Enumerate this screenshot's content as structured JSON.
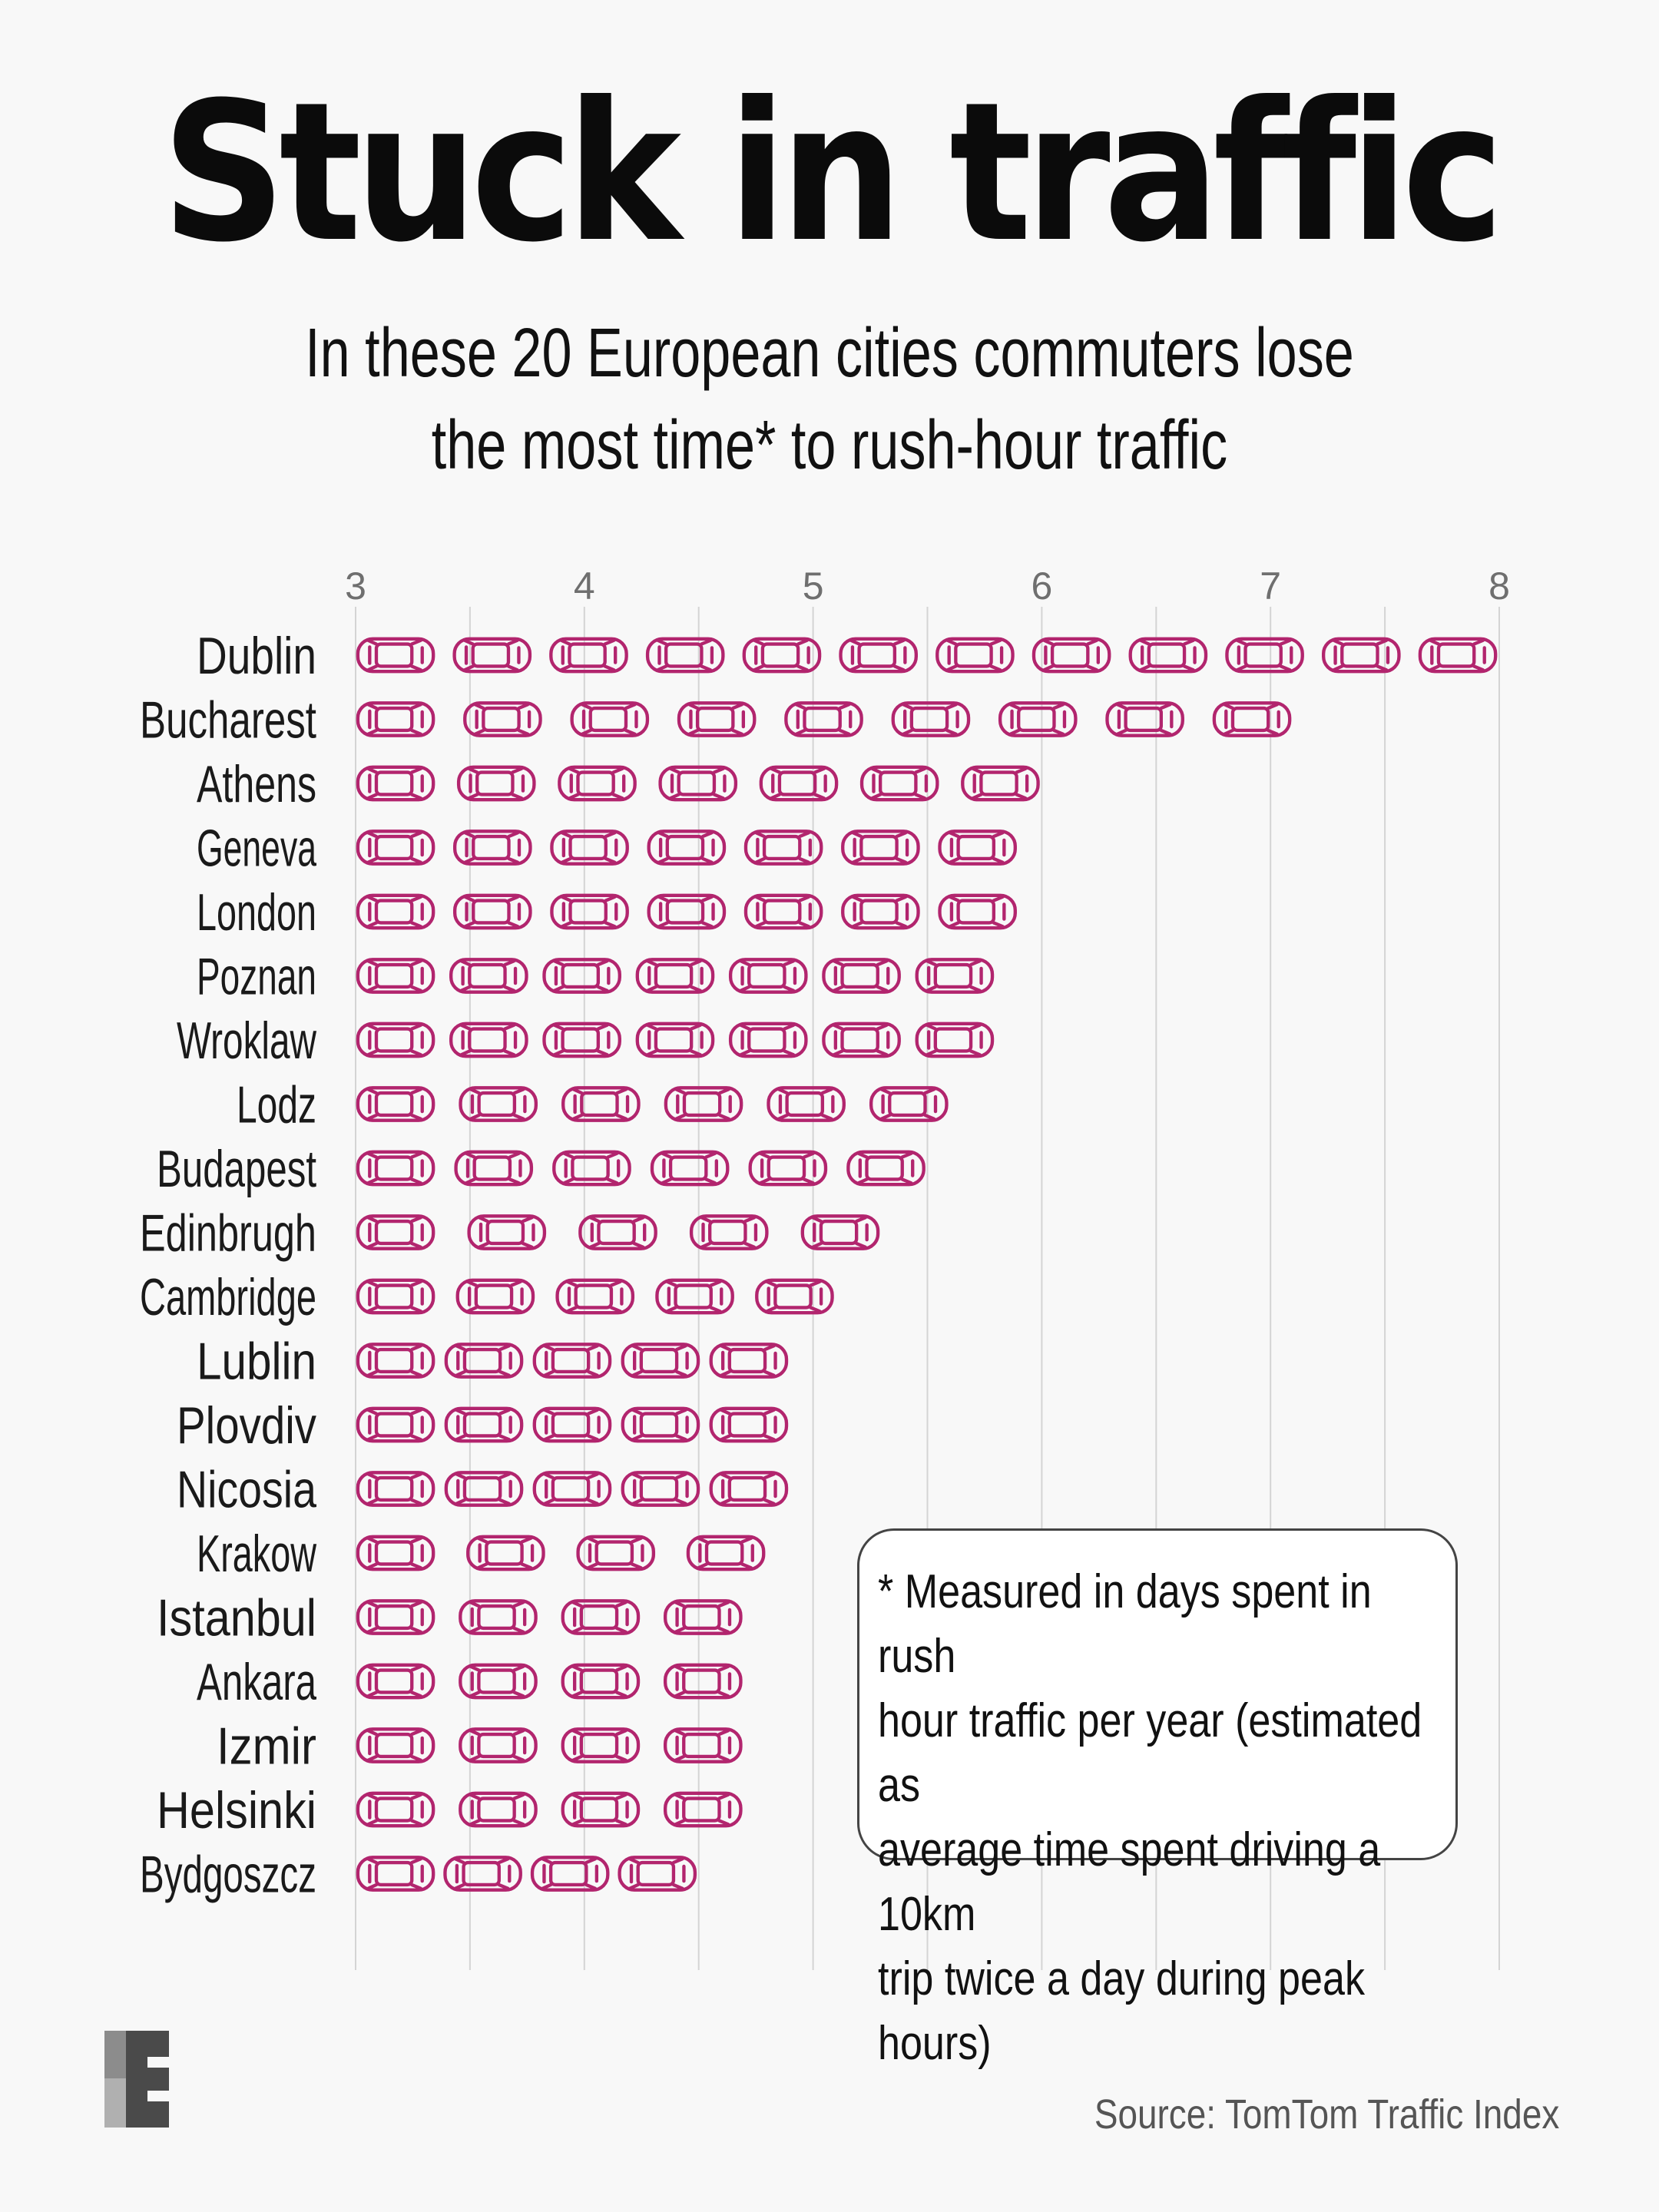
{
  "title": "Stuck in traffic",
  "subtitle_line1": "In these 20 European cities commuters lose",
  "subtitle_line2": "the most time* to rush-hour traffic",
  "note": "* Measured in days spent in rush\nhour traffic per year (estimated as\naverage time spent driving a 10km\ntrip twice a day during peak hours)",
  "source": "Source: TomTom Traffic Index",
  "colors": {
    "car": "#b2256e",
    "grid": "#d4d4d4",
    "text": "#111111",
    "background": "#f8f8f8"
  },
  "icons": {
    "car": "car-icon",
    "logo": "publisher-logo-icon"
  },
  "chart_data": {
    "type": "bar",
    "units": "days",
    "xlim": [
      3,
      8
    ],
    "ticks": [
      3,
      4,
      5,
      6,
      7,
      8
    ],
    "tick_labels": [
      "3",
      "4",
      "5",
      "6",
      "7",
      "8"
    ],
    "grid": true,
    "categories": [
      "Dublin",
      "Bucharest",
      "Athens",
      "Geneva",
      "London",
      "Poznan",
      "Wroklaw",
      "Lodz",
      "Budapest",
      "Edinbrugh",
      "Cambridge",
      "Lublin",
      "Plovdiv",
      "Nicosia",
      "Krakow",
      "Istanbul",
      "Ankara",
      "Izmir",
      "Helsinki",
      "Bydgoszcz"
    ],
    "values": [
      8.0,
      7.1,
      6.0,
      5.9,
      5.9,
      5.8,
      5.8,
      5.6,
      5.5,
      5.3,
      5.1,
      4.9,
      4.9,
      4.9,
      4.8,
      4.7,
      4.7,
      4.7,
      4.7,
      4.5
    ],
    "icon_counts": [
      12,
      9,
      7,
      7,
      7,
      7,
      7,
      6,
      6,
      5,
      5,
      5,
      5,
      5,
      4,
      4,
      4,
      4,
      4,
      4
    ]
  }
}
